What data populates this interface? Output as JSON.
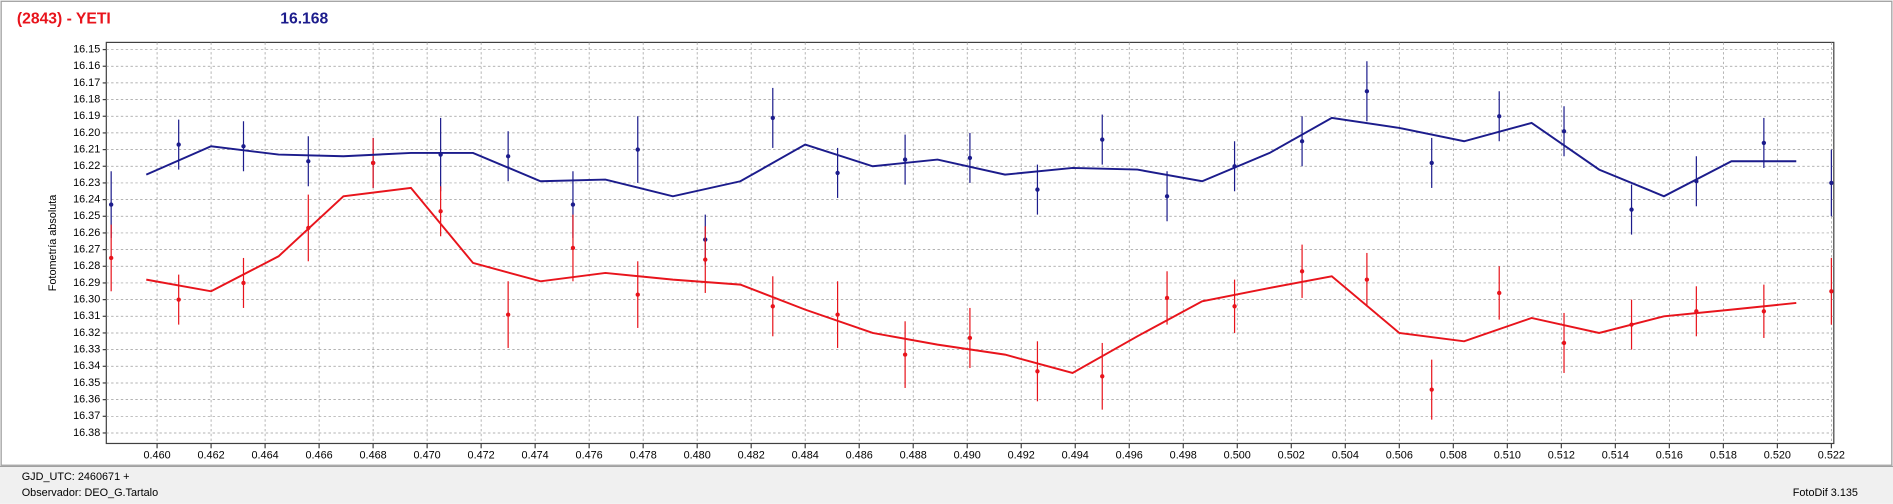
{
  "header": {
    "title": "(2843) - YETI",
    "value": "16.168"
  },
  "status": {
    "date": "GJD_UTC: 2460671 +",
    "observer": "Observador: DEO_G.Tartalo",
    "software": "FotoDif 3.135"
  },
  "chart_data": {
    "type": "scatter",
    "y_label": "Fotometría absoluta",
    "xlim": [
      0.45812,
      0.52209
    ],
    "ylim": [
      16.1457,
      16.3863
    ],
    "y_inverted": true,
    "grid": true,
    "xticks": [
      {
        "value": 0.46,
        "label": "0.460"
      },
      {
        "value": 0.462,
        "label": "0.462"
      },
      {
        "value": 0.464,
        "label": "0.464"
      },
      {
        "value": 0.466,
        "label": "0.466"
      },
      {
        "value": 0.468,
        "label": "0.468"
      },
      {
        "value": 0.47,
        "label": "0.470"
      },
      {
        "value": 0.472,
        "label": "0.472"
      },
      {
        "value": 0.474,
        "label": "0.474"
      },
      {
        "value": 0.476,
        "label": "0.476"
      },
      {
        "value": 0.478,
        "label": "0.478"
      },
      {
        "value": 0.48,
        "label": "0.480"
      },
      {
        "value": 0.482,
        "label": "0.482"
      },
      {
        "value": 0.484,
        "label": "0.484"
      },
      {
        "value": 0.486,
        "label": "0.486"
      },
      {
        "value": 0.488,
        "label": "0.488"
      },
      {
        "value": 0.49,
        "label": "0.490"
      },
      {
        "value": 0.492,
        "label": "0.492"
      },
      {
        "value": 0.494,
        "label": "0.494"
      },
      {
        "value": 0.496,
        "label": "0.496"
      },
      {
        "value": 0.498,
        "label": "0.498"
      },
      {
        "value": 0.5,
        "label": "0.500"
      },
      {
        "value": 0.502,
        "label": "0.502"
      },
      {
        "value": 0.504,
        "label": "0.504"
      },
      {
        "value": 0.506,
        "label": "0.506"
      },
      {
        "value": 0.508,
        "label": "0.508"
      },
      {
        "value": 0.51,
        "label": "0.510"
      },
      {
        "value": 0.512,
        "label": "0.512"
      },
      {
        "value": 0.514,
        "label": "0.514"
      },
      {
        "value": 0.516,
        "label": "0.516"
      },
      {
        "value": 0.518,
        "label": "0.518"
      },
      {
        "value": 0.52,
        "label": "0.520"
      },
      {
        "value": 0.522,
        "label": "0.522"
      }
    ],
    "yticks": [
      16.15,
      16.16,
      16.17,
      16.18,
      16.19,
      {
        "value": 16.2,
        "label": "16.20"
      },
      16.21,
      16.22,
      16.23,
      16.24,
      16.25,
      16.26,
      16.27,
      16.28,
      16.29,
      {
        "value": 16.3,
        "label": "16.30"
      },
      16.31,
      16.32,
      16.33,
      16.34,
      16.35,
      16.36,
      16.37,
      16.38
    ],
    "series": [
      {
        "style": "points",
        "color": "#1c1c8c",
        "x": [
          0.4583,
          0.4608,
          0.4632,
          0.4656,
          0.468,
          0.4705,
          0.473,
          0.4754,
          0.4778,
          0.4803,
          0.4828,
          0.4852,
          0.4877,
          0.4901,
          0.4926,
          0.495,
          0.4974,
          0.4999,
          0.5024,
          0.5048,
          0.5072,
          0.5097,
          0.5121,
          0.5146,
          0.517,
          0.5195,
          0.522
        ],
        "values": [
          16.243,
          16.207,
          16.208,
          16.217,
          16.218,
          16.213,
          16.214,
          16.243,
          16.21,
          16.264,
          16.191,
          16.224,
          16.216,
          16.215,
          16.234,
          16.204,
          16.238,
          16.22,
          16.205,
          16.175,
          16.218,
          16.19,
          16.199,
          16.246,
          16.229,
          16.206,
          16.23
        ],
        "errors": [
          0.02,
          0.015,
          0.015,
          0.015,
          0.015,
          0.022,
          0.015,
          0.02,
          0.02,
          0.015,
          0.018,
          0.015,
          0.015,
          0.015,
          0.015,
          0.015,
          0.015,
          0.015,
          0.015,
          0.018,
          0.015,
          0.015,
          0.015,
          0.015,
          0.015,
          0.015,
          0.02
        ]
      },
      {
        "style": "points",
        "color": "#e8141c",
        "x": [
          0.4583,
          0.4608,
          0.4632,
          0.4656,
          0.468,
          0.4705,
          0.473,
          0.4754,
          0.4778,
          0.4803,
          0.4828,
          0.4852,
          0.4877,
          0.4901,
          0.4926,
          0.495,
          0.4974,
          0.4999,
          0.5024,
          0.5048,
          0.5072,
          0.5097,
          0.5121,
          0.5146,
          0.517,
          0.5195,
          0.522
        ],
        "values": [
          16.275,
          16.3,
          16.29,
          16.257,
          16.218,
          16.247,
          16.309,
          16.269,
          16.297,
          16.276,
          16.304,
          16.309,
          16.333,
          16.323,
          16.343,
          16.346,
          16.299,
          16.304,
          16.283,
          16.288,
          16.354,
          16.296,
          16.326,
          16.315,
          16.307,
          16.307,
          16.295
        ],
        "errors": [
          0.02,
          0.015,
          0.015,
          0.02,
          0.015,
          0.015,
          0.02,
          0.02,
          0.02,
          0.02,
          0.018,
          0.02,
          0.02,
          0.018,
          0.018,
          0.02,
          0.016,
          0.016,
          0.016,
          0.016,
          0.018,
          0.016,
          0.018,
          0.015,
          0.015,
          0.016,
          0.02
        ]
      },
      {
        "style": "line",
        "color": "#1c1c8c",
        "x": [
          0.4596,
          0.462,
          0.4645,
          0.4669,
          0.4694,
          0.4717,
          0.4742,
          0.4766,
          0.4791,
          0.4816,
          0.484,
          0.4865,
          0.4889,
          0.4914,
          0.4939,
          0.4963,
          0.4987,
          0.5012,
          0.5035,
          0.506,
          0.5084,
          0.5109,
          0.5134,
          0.5158,
          0.5183,
          0.5207
        ],
        "values": [
          16.225,
          16.208,
          16.213,
          16.214,
          16.212,
          16.212,
          16.229,
          16.228,
          16.238,
          16.229,
          16.207,
          16.22,
          16.216,
          16.225,
          16.221,
          16.222,
          16.229,
          16.212,
          16.191,
          16.197,
          16.205,
          16.194,
          16.222,
          16.238,
          16.217,
          16.217
        ]
      },
      {
        "style": "line",
        "color": "#e8141c",
        "x": [
          0.4596,
          0.462,
          0.4645,
          0.4669,
          0.4694,
          0.4717,
          0.4742,
          0.4766,
          0.4791,
          0.4816,
          0.484,
          0.4865,
          0.4889,
          0.4914,
          0.4939,
          0.4963,
          0.4987,
          0.5012,
          0.5035,
          0.506,
          0.5084,
          0.5109,
          0.5134,
          0.5158,
          0.5183,
          0.5207
        ],
        "values": [
          16.288,
          16.295,
          16.274,
          16.238,
          16.233,
          16.278,
          16.289,
          16.284,
          16.288,
          16.291,
          16.306,
          16.32,
          16.327,
          16.333,
          16.344,
          16.322,
          16.301,
          16.293,
          16.286,
          16.32,
          16.325,
          16.311,
          16.32,
          16.31,
          16.306,
          16.302
        ]
      }
    ]
  }
}
